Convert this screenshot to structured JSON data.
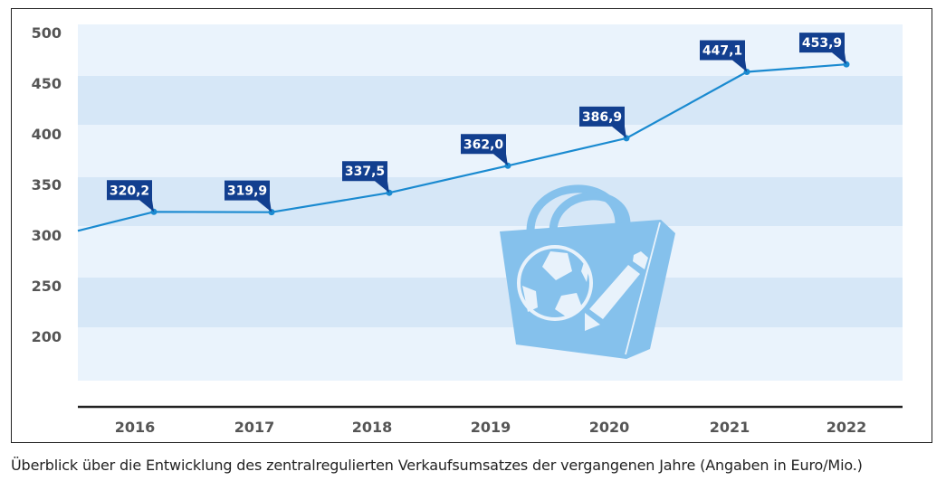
{
  "caption": "Überblick über die Entwicklung des zentralregulierten Verkaufsumsatzes der vergangenen Jahre (Angaben in Euro/Mio.)",
  "colors": {
    "band_light": "#eaf3fc",
    "band_dark": "#d6e7f7",
    "line": "#1a8ad0",
    "label_box": "#123f8f",
    "label_text": "#ffffff",
    "axis_text": "#555555",
    "illustration": "#85c1ec",
    "illustration_detail": "#e8f2fb"
  },
  "illustration": {
    "name": "shopping-bag-with-ball-and-pencil",
    "description": "Light blue shopping bag showing a soccer ball and a pencil"
  },
  "chart_data": {
    "type": "line",
    "title": "",
    "xlabel": "",
    "ylabel": "",
    "x": [
      "2016",
      "2017",
      "2018",
      "2019",
      "2020",
      "2021",
      "2022"
    ],
    "series": [
      {
        "name": "Zentralregulierter Verkaufsumsatz (Euro/Mio.)",
        "values": [
          320.2,
          319.9,
          337.5,
          362.0,
          386.9,
          447.1,
          453.9
        ],
        "labels": [
          "320,2",
          "319,9",
          "337,5",
          "362,0",
          "386,9",
          "447,1",
          "453,9"
        ]
      }
    ],
    "yticks": [
      500,
      450,
      400,
      350,
      300,
      250,
      200
    ],
    "ylim": [
      150,
      500
    ],
    "grid": "alternating horizontal bands",
    "legend": "none",
    "data_labels": true
  }
}
